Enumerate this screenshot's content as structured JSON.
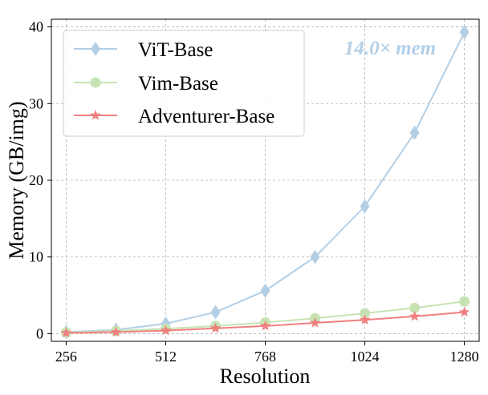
{
  "chart_data": {
    "type": "line",
    "xlabel": "Resolution",
    "ylabel": "Memory (GB/img)",
    "x": [
      256,
      384,
      512,
      640,
      768,
      896,
      1024,
      1152,
      1280
    ],
    "xticks": [
      256,
      512,
      768,
      1024,
      1280
    ],
    "yticks": [
      0,
      10,
      20,
      30,
      40
    ],
    "xlim": [
      218,
      1318
    ],
    "ylim": [
      -1.0,
      41.0
    ],
    "grid": true,
    "legend_position": "top-left",
    "series": [
      {
        "name": "ViT-Base",
        "color": "#b3cfe6",
        "marker": "diamond",
        "values": [
          0.2,
          0.5,
          1.3,
          2.8,
          5.6,
          10.0,
          16.6,
          26.2,
          39.3
        ]
      },
      {
        "name": "Vim-Base",
        "color": "#c7e3b4",
        "marker": "circle",
        "values": [
          0.15,
          0.35,
          0.65,
          1.0,
          1.45,
          2.0,
          2.65,
          3.35,
          4.2
        ]
      },
      {
        "name": "Adventurer-Base",
        "color": "#f08080",
        "marker": "star",
        "values": [
          0.1,
          0.2,
          0.4,
          0.7,
          1.0,
          1.4,
          1.8,
          2.25,
          2.8
        ]
      }
    ],
    "annotation": {
      "text": "14.0× mem",
      "color": "#b3cfe6"
    }
  }
}
